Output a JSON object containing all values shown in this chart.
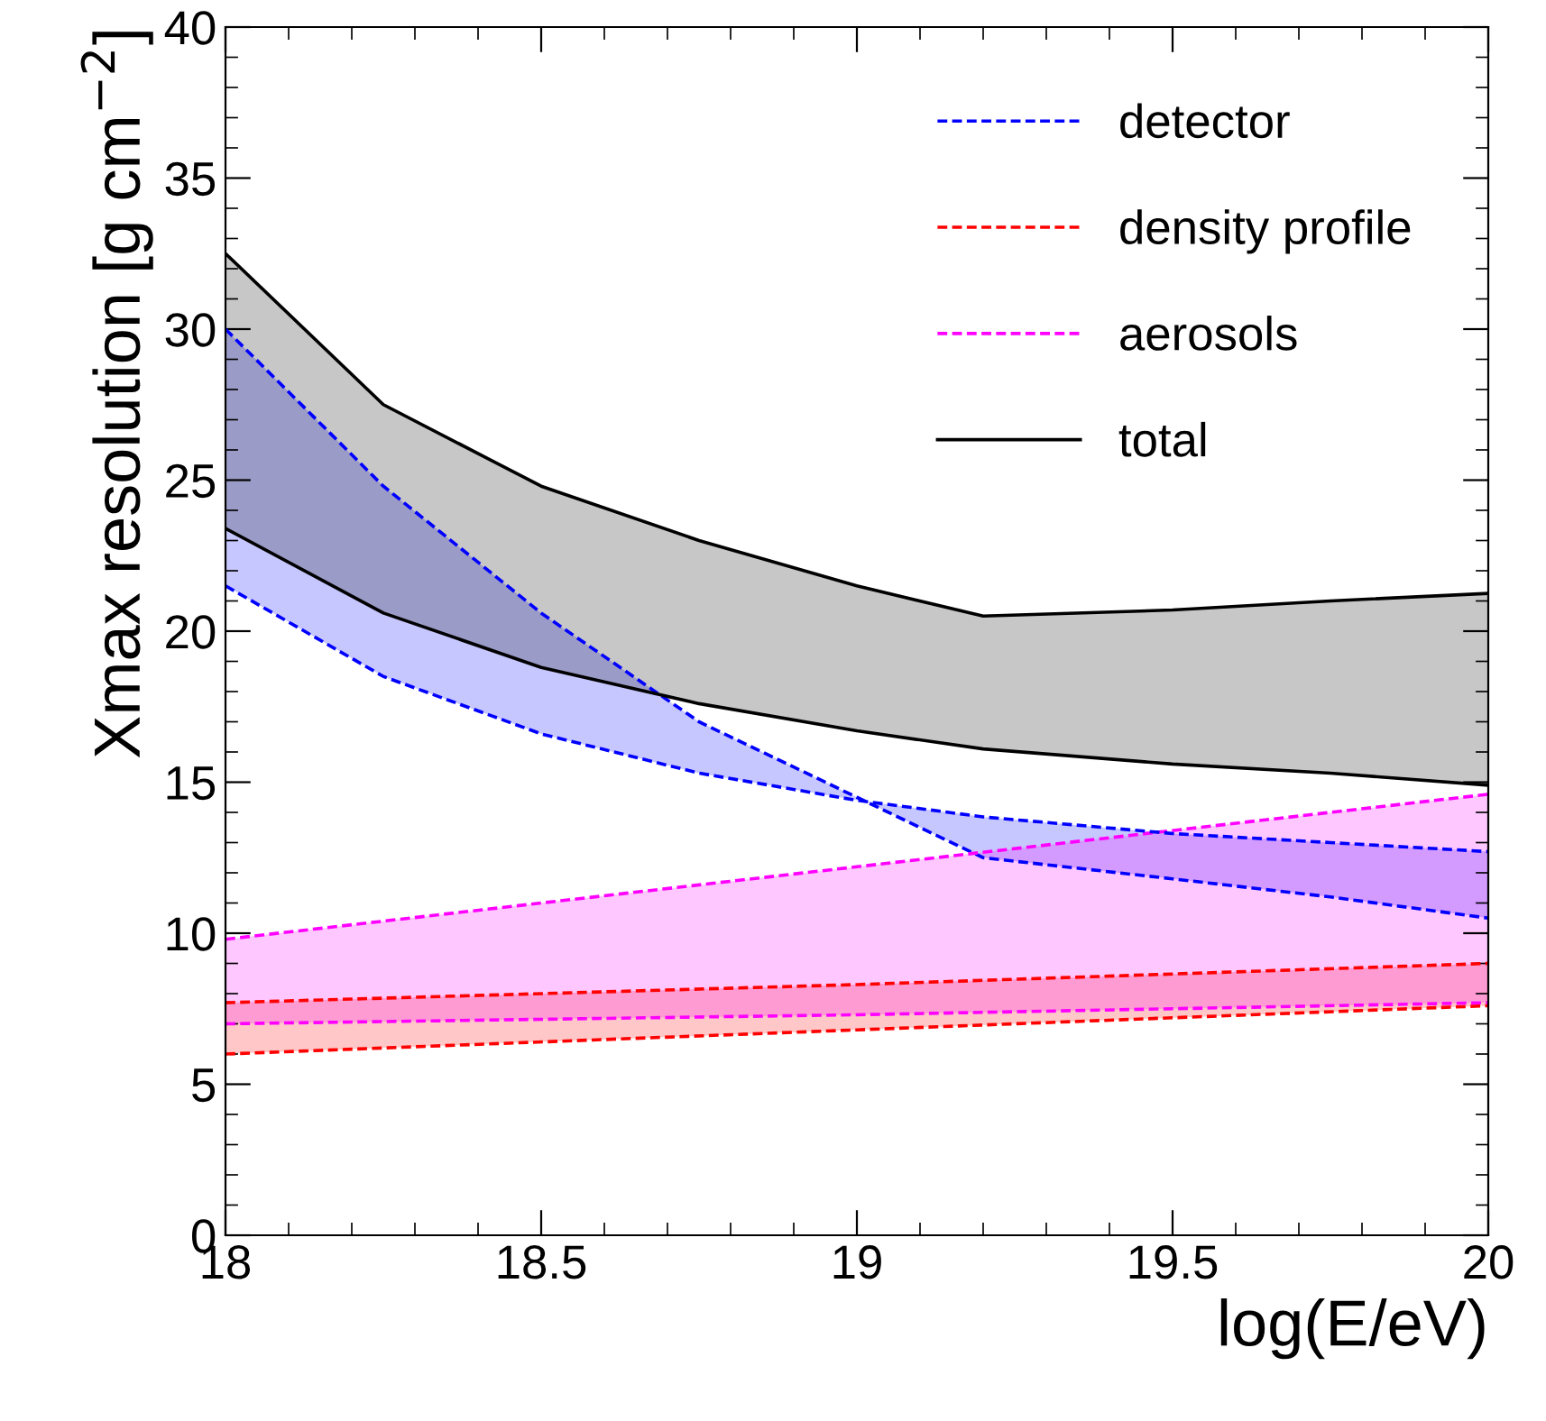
{
  "chart_data": {
    "type": "line",
    "xlabel": "log(E/eV)",
    "ylabel": "Xmax resolution [g cm$^{−2}$]",
    "xlim": [
      18,
      20
    ],
    "ylim": [
      0,
      40
    ],
    "xticks": [
      18,
      18.5,
      19,
      19.5,
      20
    ],
    "yticks": [
      0,
      5,
      10,
      15,
      20,
      25,
      30,
      35,
      40
    ],
    "grid": false,
    "legend": "top right",
    "series": [
      {
        "name": "detector",
        "color": "#0000ff",
        "line_style": "dashed",
        "x": [
          18,
          18.25,
          18.5,
          18.75,
          19,
          19.2,
          19.5,
          19.75,
          20
        ],
        "values": [
          30.0,
          24.8,
          20.6,
          17.0,
          14.5,
          12.5,
          11.8,
          11.2,
          10.5
        ],
        "lower": [
          21.5,
          18.5,
          16.6,
          15.3,
          14.4,
          13.85,
          13.3,
          13.0,
          12.7
        ],
        "upper": [
          30.0,
          24.8,
          20.6,
          17.0,
          14.5,
          12.5,
          11.8,
          11.2,
          10.5
        ]
      },
      {
        "name": "density profile",
        "color": "#ff0000",
        "line_style": "dashed",
        "x": [
          18,
          19,
          20
        ],
        "values": [
          7.7,
          8.3,
          9.0
        ],
        "lower": [
          6.0,
          6.8,
          7.6
        ],
        "upper": [
          7.7,
          8.3,
          9.0
        ]
      },
      {
        "name": "aerosols",
        "color": "#ff00ff",
        "line_style": "dashed",
        "x": [
          18,
          19,
          20
        ],
        "values": [
          9.8,
          12.2,
          14.6
        ],
        "lower": [
          7.0,
          7.3,
          7.7
        ],
        "upper": [
          9.8,
          12.2,
          14.6
        ]
      },
      {
        "name": "total",
        "color": "#000000",
        "line_style": "solid",
        "x": [
          18,
          18.25,
          18.5,
          18.75,
          19,
          19.2,
          19.5,
          19.75,
          20
        ],
        "values": [
          32.5,
          27.5,
          24.8,
          23.0,
          21.5,
          20.5,
          20.7,
          21.0,
          21.25
        ],
        "lower": [
          23.4,
          20.6,
          18.8,
          17.6,
          16.7,
          16.1,
          15.6,
          15.3,
          14.9
        ],
        "upper": [
          32.5,
          27.5,
          24.8,
          23.0,
          21.5,
          20.5,
          20.7,
          21.0,
          21.25
        ]
      },
      {
        "color": "#0000ff",
        "line_style": "dashed",
        "x": [
          18,
          18.25,
          18.5,
          18.75,
          19,
          19.2,
          19.5,
          19.75,
          20
        ],
        "values": [
          21.5,
          18.5,
          16.6,
          15.3,
          14.4,
          13.85,
          13.3,
          13.0,
          12.7
        ]
      },
      {
        "color": "#ff0000",
        "line_style": "dashed",
        "x": [
          18,
          19,
          20
        ],
        "values": [
          6.0,
          6.8,
          7.6
        ]
      },
      {
        "color": "#ff00ff",
        "line_style": "dashed",
        "x": [
          18,
          19,
          20
        ],
        "values": [
          7.0,
          7.3,
          7.7
        ]
      },
      {
        "color": "#000000",
        "line_style": "solid",
        "x": [
          18,
          18.25,
          18.5,
          18.75,
          19,
          19.2,
          19.5,
          19.75,
          20
        ],
        "values": [
          23.4,
          20.6,
          18.8,
          17.6,
          16.7,
          16.1,
          15.6,
          15.3,
          14.9
        ]
      }
    ]
  }
}
